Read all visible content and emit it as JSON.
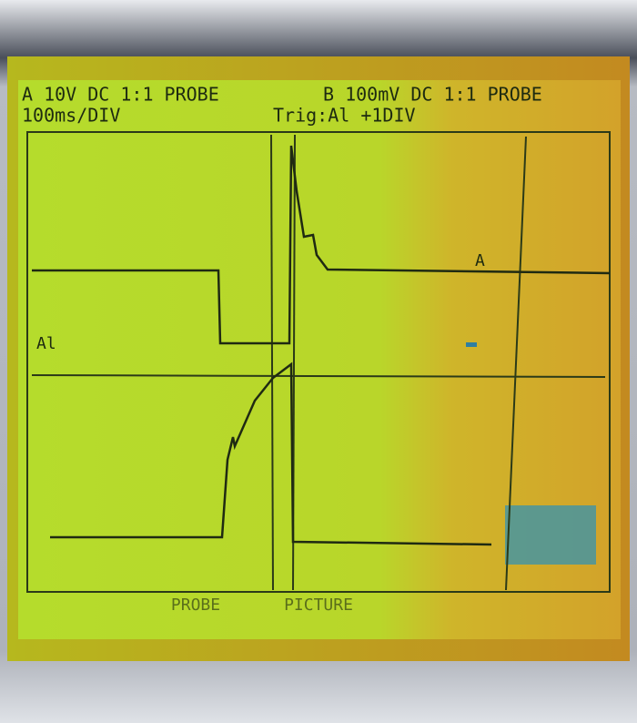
{
  "header": {
    "channel_a": "A 10V DC 1:1 PROBE",
    "channel_b": "B 100mV DC 1:1 PROBE",
    "timebase": "100ms/DIV",
    "trigger": "Trig:Al +1DIV"
  },
  "labels": {
    "trace_a": "A",
    "trigger_level": "Al"
  },
  "menu": [
    "PROBE",
    "PICTURE"
  ]
}
